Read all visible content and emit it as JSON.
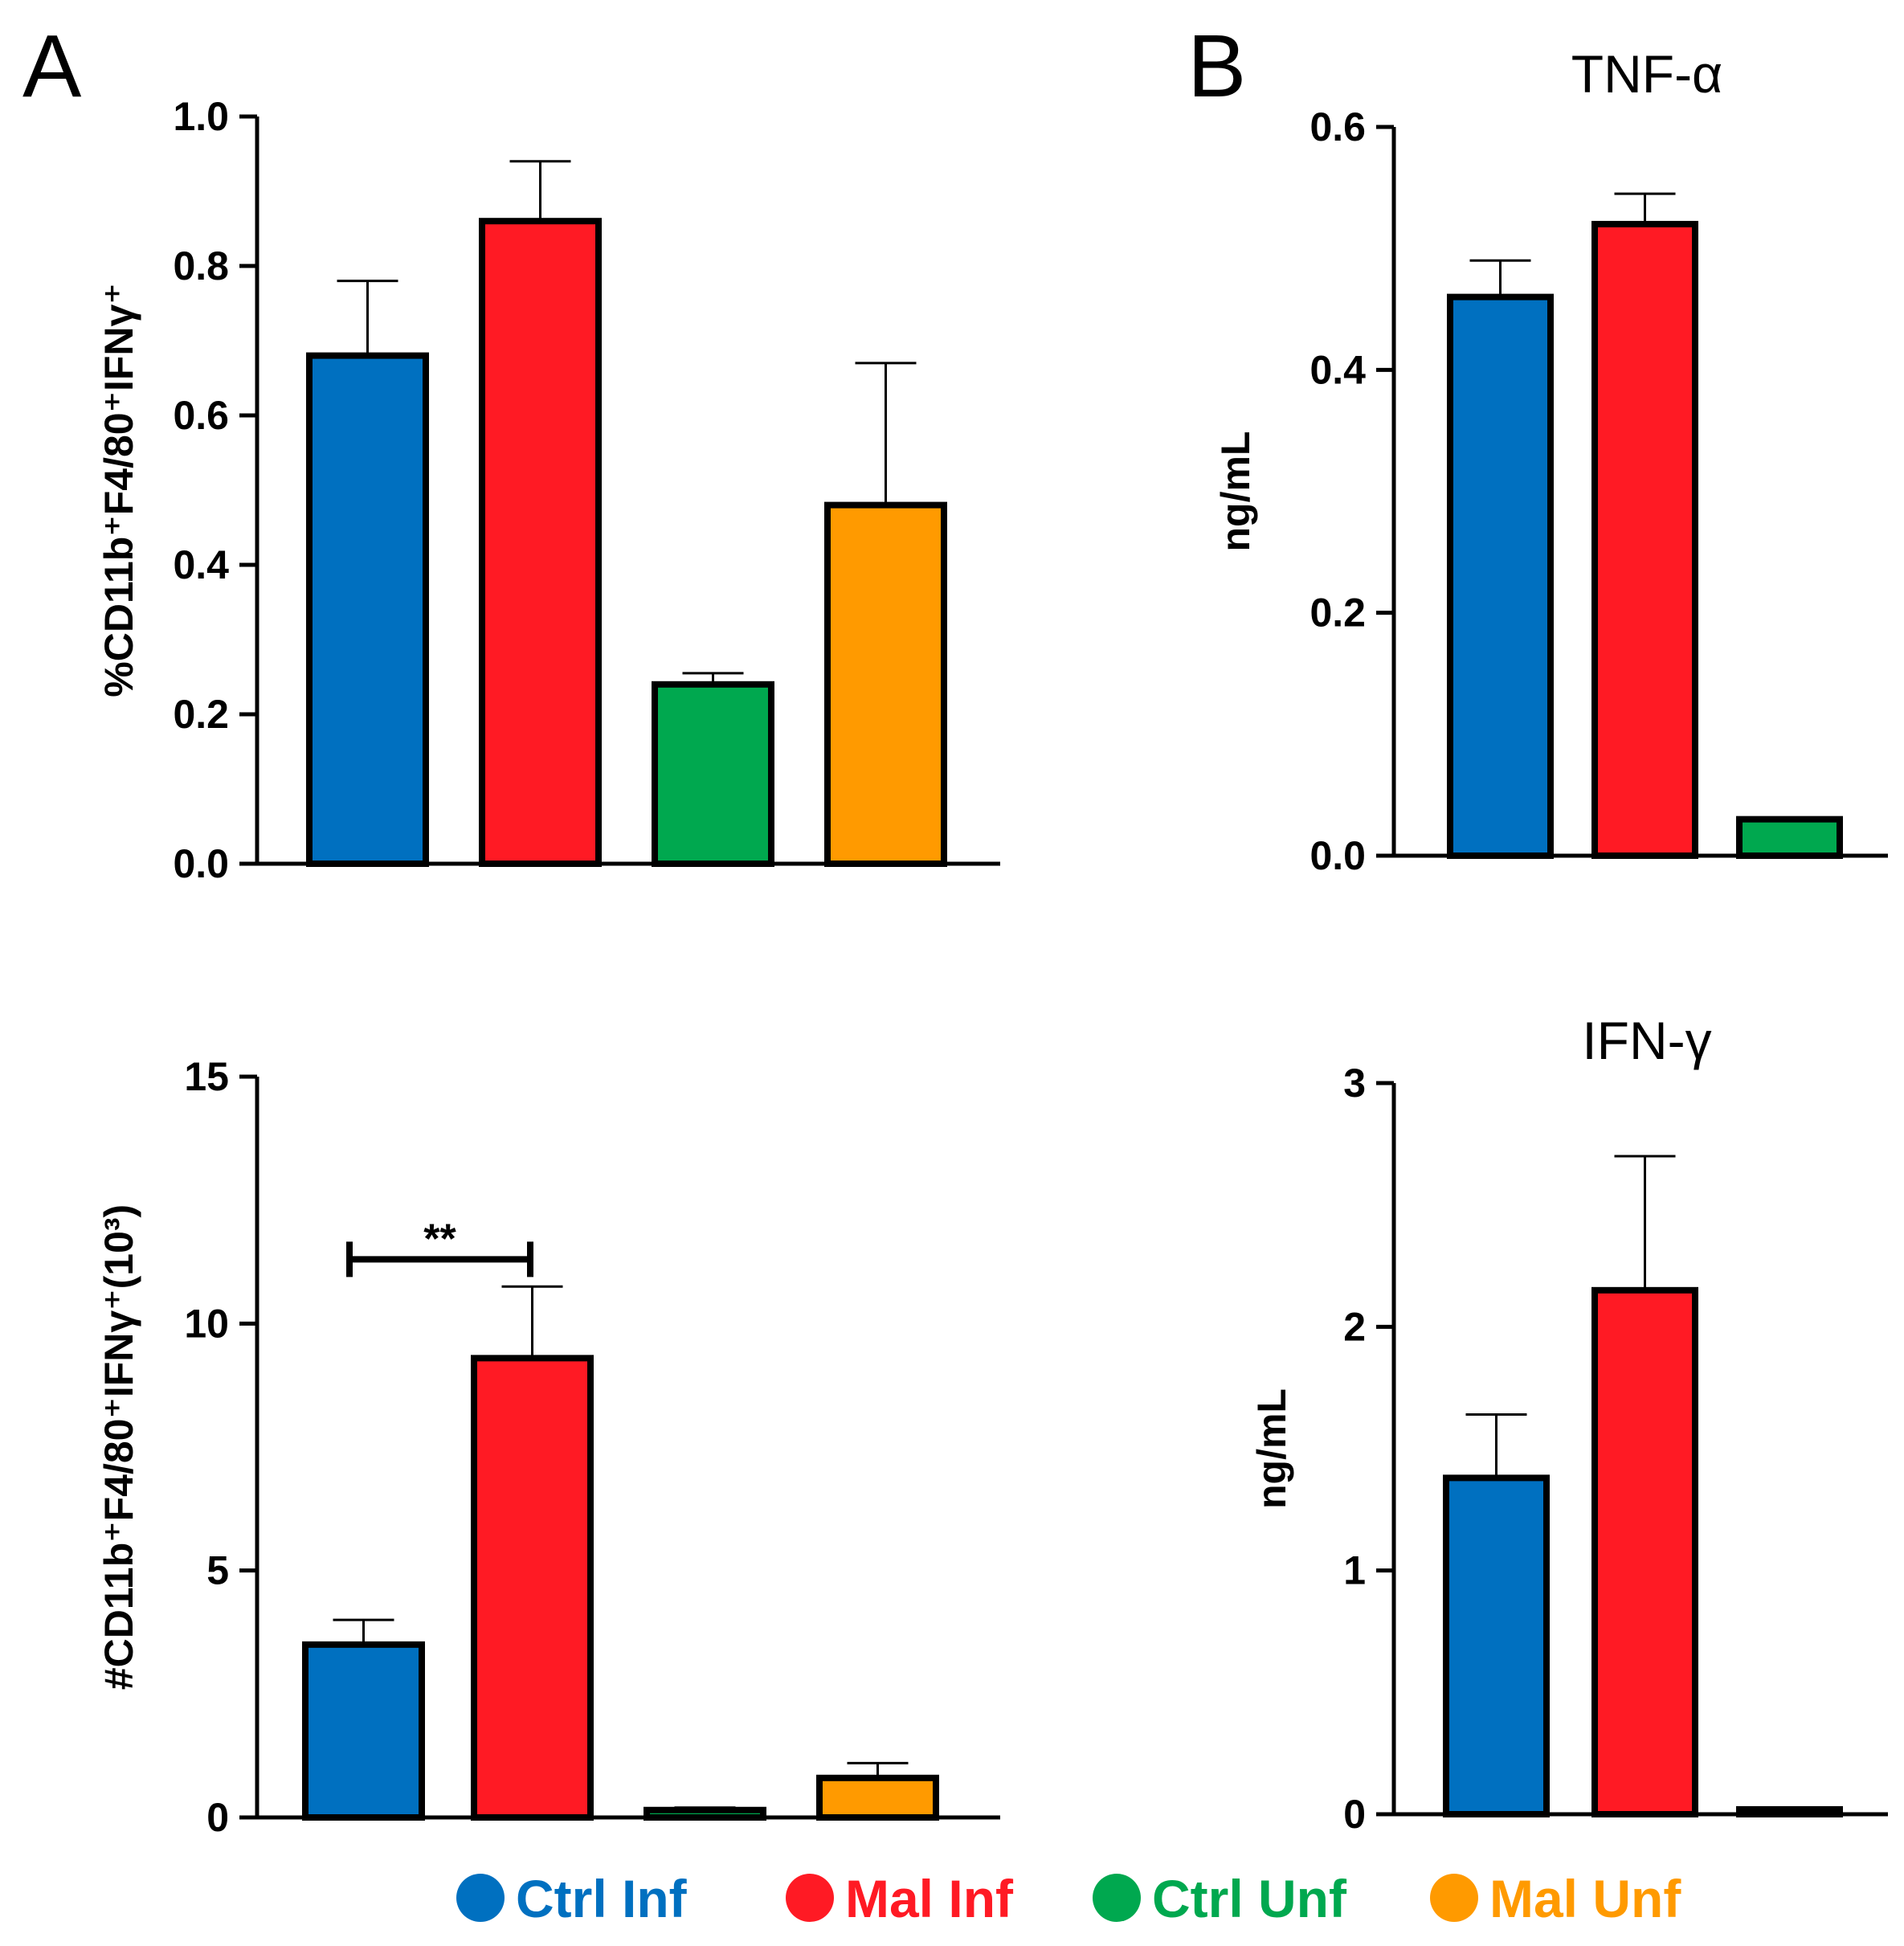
{
  "panels": {
    "A": "A",
    "B": "B"
  },
  "legend": [
    {
      "label": "Ctrl Inf",
      "color": "#0070c0"
    },
    {
      "label": "Mal Inf",
      "color": "#ff1a24"
    },
    {
      "label": "Ctrl Unf",
      "color": "#00a84f"
    },
    {
      "label": "Mal Unf",
      "color": "#ff9a00"
    }
  ],
  "chart_data": [
    {
      "panel": "A",
      "type": "bar",
      "title": "",
      "ylabel": "%CD11b⁺F4/80⁺IFNγ⁺",
      "categories": [
        "Ctrl Inf",
        "Mal Inf",
        "Ctrl Unf",
        "Mal Unf"
      ],
      "values": [
        0.68,
        0.86,
        0.24,
        0.48
      ],
      "errors": [
        0.1,
        0.08,
        0.015,
        0.19
      ],
      "colors": [
        "#0070c0",
        "#ff1a24",
        "#00a84f",
        "#ff9a00"
      ],
      "ylim": [
        0,
        1.0
      ],
      "yticks": [
        0.0,
        0.2,
        0.4,
        0.6,
        0.8,
        1.0
      ],
      "ytick_labels": [
        "0.0",
        "0.2",
        "0.4",
        "0.6",
        "0.8",
        "1.0"
      ]
    },
    {
      "panel": "A",
      "type": "bar",
      "title": "",
      "ylabel": "#CD11b⁺F4/80⁺IFNγ⁺(10³)",
      "categories": [
        "Ctrl Inf",
        "Mal Inf",
        "Ctrl Unf",
        "Mal Unf"
      ],
      "values": [
        3.5,
        9.3,
        0.15,
        0.8
      ],
      "errors": [
        0.5,
        1.45,
        0.05,
        0.3
      ],
      "colors": [
        "#0070c0",
        "#ff1a24",
        "#00a84f",
        "#ff9a00"
      ],
      "ylim": [
        0,
        15
      ],
      "yticks": [
        0,
        5,
        10,
        15
      ],
      "ytick_labels": [
        "0",
        "5",
        "10",
        "15"
      ],
      "significance": {
        "from": 0,
        "to": 1,
        "label": "**",
        "y": 11.3
      }
    },
    {
      "panel": "B",
      "type": "bar",
      "title": "TNF-α",
      "ylabel": "ng/mL",
      "categories": [
        "Ctrl Inf",
        "Mal Inf",
        "Ctrl Unf"
      ],
      "values": [
        0.46,
        0.52,
        0.03
      ],
      "errors": [
        0.03,
        0.025,
        0.0
      ],
      "colors": [
        "#0070c0",
        "#ff1a24",
        "#00a84f"
      ],
      "ylim": [
        0,
        0.6
      ],
      "yticks": [
        0.0,
        0.2,
        0.4,
        0.6
      ],
      "ytick_labels": [
        "0.0",
        "0.2",
        "0.4",
        "0.6"
      ]
    },
    {
      "panel": "B",
      "type": "bar",
      "title": "IFN-γ",
      "ylabel": "ng/mL",
      "categories": [
        "Ctrl Inf",
        "Mal Inf",
        "Ctrl Unf"
      ],
      "values": [
        1.38,
        2.15,
        0.02
      ],
      "errors": [
        0.26,
        0.55,
        0.0
      ],
      "colors": [
        "#0070c0",
        "#ff1a24",
        "#00a84f"
      ],
      "ylim": [
        0,
        3
      ],
      "yticks": [
        0,
        1,
        2,
        3
      ],
      "ytick_labels": [
        "0",
        "1",
        "2",
        "3"
      ]
    }
  ]
}
